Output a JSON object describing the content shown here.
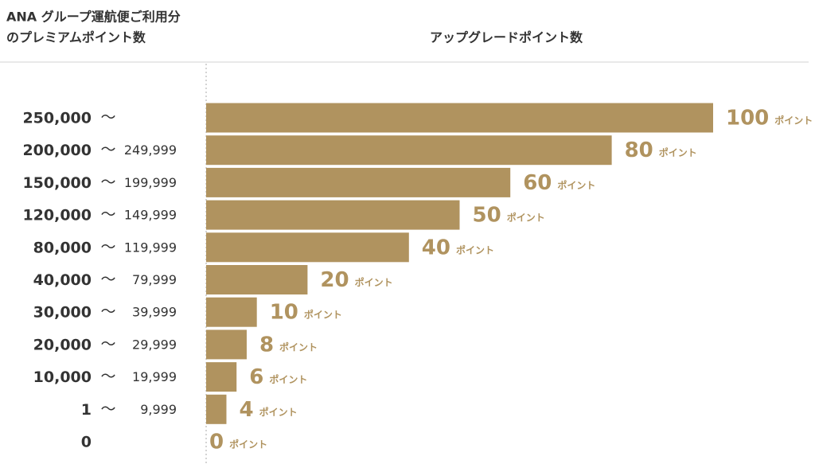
{
  "chart_data": {
    "type": "hbar",
    "header_left": [
      "ANA グループ運航便ご利用分",
      "のプレミアムポイント数"
    ],
    "title": "アップグレードポイント数",
    "categories": [
      "250,000",
      "200,000",
      "150,000",
      "120,000",
      "80,000",
      "40,000",
      "30,000",
      "20,000",
      "10,000",
      "1",
      "0"
    ],
    "categories_to": [
      null,
      "249,999",
      "199,999",
      "149,999",
      "119,999",
      "79,999",
      "39,999",
      "29,999",
      "19,999",
      "9,999",
      null
    ],
    "range_separator": "〜",
    "values": [
      100,
      80,
      60,
      50,
      40,
      20,
      10,
      8,
      6,
      4,
      0
    ],
    "value_unit": "ポイント",
    "color": "#b0935f",
    "xlim": [
      0,
      100
    ]
  }
}
